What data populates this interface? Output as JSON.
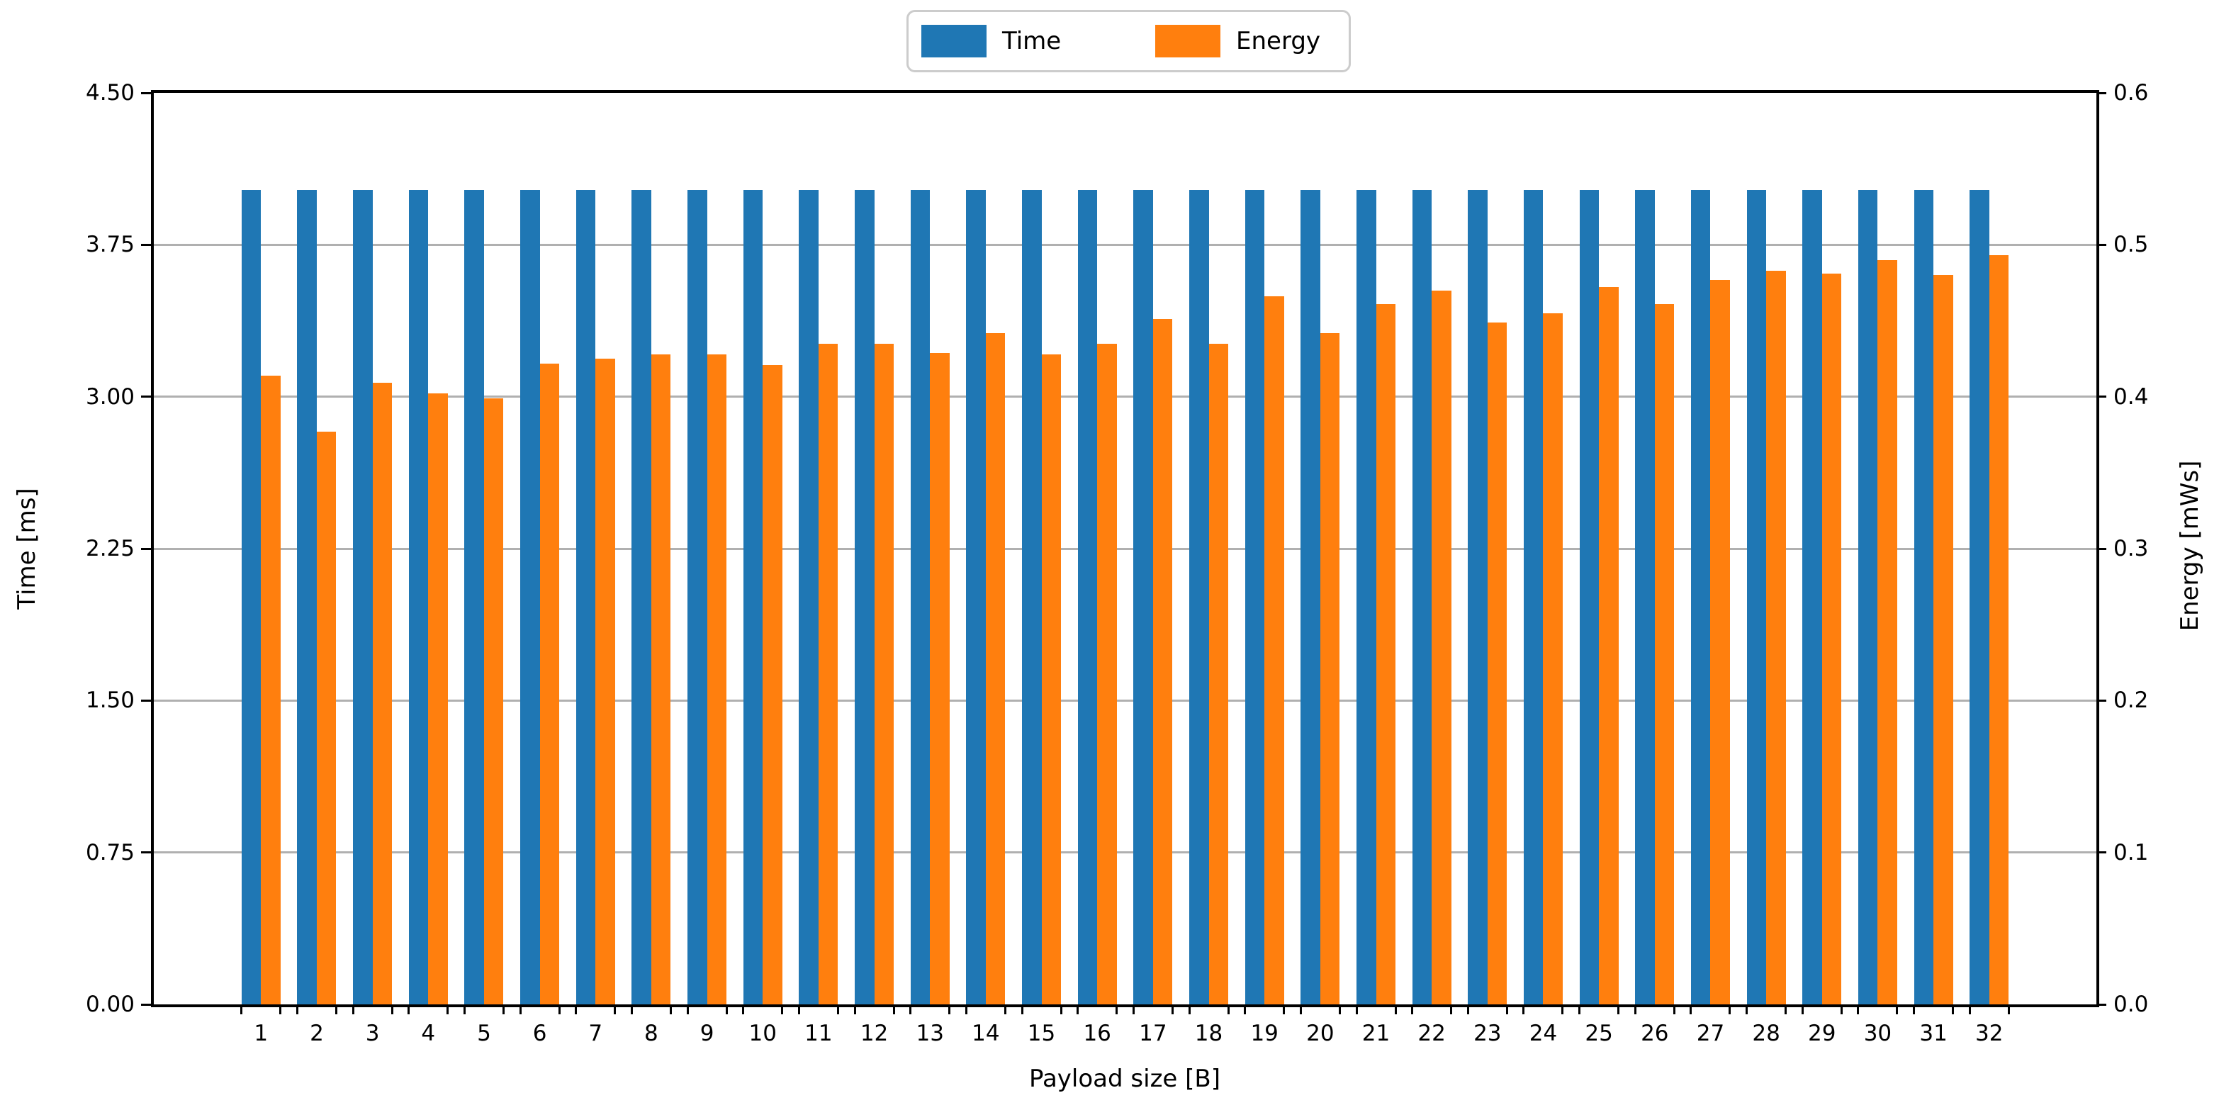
{
  "legend": {
    "items": [
      {
        "label": "Time",
        "color": "#1f77b4"
      },
      {
        "label": "Energy",
        "color": "#ff7f0e"
      }
    ]
  },
  "axes": {
    "left": {
      "label": "Time [ms]",
      "ticks": [
        "4.50",
        "3.75",
        "3.00",
        "2.25",
        "1.50",
        "0.75",
        "0.00"
      ]
    },
    "right": {
      "label": "Energy [mWs]",
      "ticks": [
        "0.6",
        "0.5",
        "0.4",
        "0.3",
        "0.2",
        "0.1",
        "0.0"
      ]
    },
    "x": {
      "label": "Payload size [B]"
    }
  },
  "chart_data": {
    "type": "bar",
    "title": "",
    "categories": [
      1,
      2,
      3,
      4,
      5,
      6,
      7,
      8,
      9,
      10,
      11,
      12,
      13,
      14,
      15,
      16,
      17,
      18,
      19,
      20,
      21,
      22,
      23,
      24,
      25,
      26,
      27,
      28,
      29,
      30,
      31,
      32
    ],
    "series": [
      {
        "name": "Time",
        "axis": "left",
        "unit": "ms",
        "color": "#1f77b4",
        "values": [
          4.02,
          4.02,
          4.02,
          4.02,
          4.02,
          4.02,
          4.02,
          4.02,
          4.02,
          4.02,
          4.02,
          4.02,
          4.02,
          4.02,
          4.02,
          4.02,
          4.02,
          4.02,
          4.02,
          4.02,
          4.02,
          4.02,
          4.02,
          4.02,
          4.02,
          4.02,
          4.02,
          4.02,
          4.02,
          4.02,
          4.02,
          4.02
        ]
      },
      {
        "name": "Energy",
        "axis": "right",
        "unit": "mWs",
        "color": "#ff7f0e",
        "values": [
          0.414,
          0.377,
          0.409,
          0.402,
          0.399,
          0.422,
          0.425,
          0.428,
          0.428,
          0.421,
          0.435,
          0.435,
          0.429,
          0.442,
          0.428,
          0.435,
          0.451,
          0.435,
          0.466,
          0.442,
          0.461,
          0.47,
          0.449,
          0.455,
          0.472,
          0.461,
          0.477,
          0.483,
          0.481,
          0.49,
          0.48,
          0.493
        ]
      }
    ],
    "xlabel": "Payload size [B]",
    "ylabel_left": "Time [ms]",
    "ylabel_right": "Energy [mWs]",
    "ylim_left": [
      0,
      4.5
    ],
    "ylim_right": [
      0,
      0.6
    ],
    "yticks_left": [
      4.5,
      3.75,
      3.0,
      2.25,
      1.5,
      0.75,
      0.0
    ],
    "yticks_right": [
      0.6,
      0.5,
      0.4,
      0.3,
      0.2,
      0.1,
      0.0
    ],
    "grid": true,
    "grid_color": "#b0b0b0",
    "legend_position": "upper center, outside plot"
  }
}
